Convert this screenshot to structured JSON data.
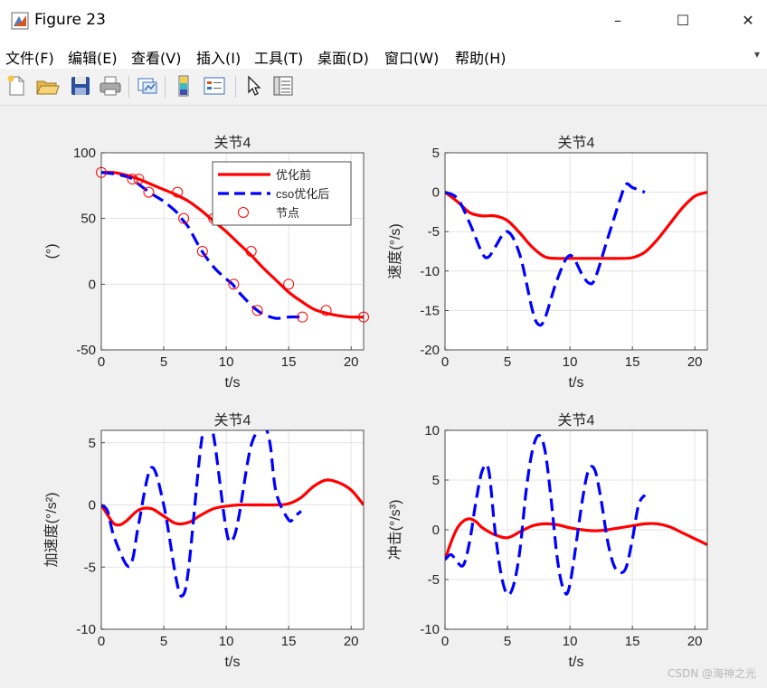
{
  "window": {
    "title": "Figure 23",
    "controls": {
      "minimize": "–",
      "maximize": "☐",
      "close": "✕"
    }
  },
  "menu": [
    "文件(F)",
    "编辑(E)",
    "查看(V)",
    "插入(I)",
    "工具(T)",
    "桌面(D)",
    "窗口(W)",
    "帮助(H)"
  ],
  "toolbar": [
    "new-figure-icon",
    "open-folder-icon",
    "save-icon",
    "print-icon",
    "link-plot-icon",
    "colorbar-icon",
    "legend-icon",
    "pointer-icon",
    "property-inspector-icon"
  ],
  "colors": {
    "before": "#ff0000",
    "after": "#0000ff",
    "nodes": "#ff0000"
  },
  "watermark": "CSDN @海神之光",
  "chart_data": [
    {
      "type": "line",
      "title": "关节4",
      "xlabel": "t/s",
      "ylabel": "(°)",
      "xlim": [
        0,
        21
      ],
      "ylim": [
        -50,
        100
      ],
      "xticks": [
        0,
        5,
        10,
        15,
        20
      ],
      "yticks": [
        -50,
        0,
        50,
        100
      ],
      "grid": true,
      "legend": {
        "position": "top-right",
        "entries": [
          "优化前",
          "cso优化后",
          "节点"
        ]
      },
      "series": [
        {
          "name": "优化前",
          "style": "solid",
          "color": "#ff0000",
          "x": [
            0,
            1,
            2,
            3,
            4,
            5,
            6,
            7,
            8,
            9,
            10,
            11,
            12,
            13,
            14,
            15,
            16,
            17,
            18,
            19,
            20,
            21
          ],
          "y": [
            85,
            85,
            83,
            80,
            76,
            72,
            68,
            63,
            56,
            48,
            40,
            31,
            22,
            12,
            3,
            -6,
            -13,
            -19,
            -22,
            -24,
            -25,
            -25
          ]
        },
        {
          "name": "cso优化后",
          "style": "dashed",
          "color": "#0000ff",
          "x": [
            0,
            1,
            2,
            2.5,
            3,
            4,
            5,
            6,
            6.5,
            7,
            8,
            9,
            10,
            10.5,
            11,
            12,
            12.5,
            13,
            14,
            15,
            16
          ],
          "y": [
            85,
            84,
            82,
            80,
            76,
            69,
            63,
            55,
            49,
            43,
            26,
            13,
            4,
            0,
            -6,
            -16,
            -20,
            -23,
            -26,
            -25,
            -25
          ]
        },
        {
          "name": "节点",
          "style": "markers",
          "color": "#ff0000",
          "x": [
            0,
            2.5,
            3,
            3.8,
            6.1,
            6.6,
            8.1,
            9,
            10.6,
            12,
            12.5,
            15,
            16.1,
            18,
            21
          ],
          "y": [
            85,
            80,
            80,
            70,
            70,
            50,
            25,
            50,
            0,
            25,
            -20,
            0,
            -25,
            -20,
            -25
          ]
        }
      ]
    },
    {
      "type": "line",
      "title": "关节4",
      "xlabel": "t/s",
      "ylabel": "速度(°/s)",
      "xlim": [
        0,
        21
      ],
      "ylim": [
        -20,
        5
      ],
      "xticks": [
        0,
        5,
        10,
        15,
        20
      ],
      "yticks": [
        -20,
        -15,
        -10,
        -5,
        0,
        5
      ],
      "grid": true,
      "series": [
        {
          "name": "优化前",
          "style": "solid",
          "color": "#ff0000",
          "x": [
            0,
            1,
            2,
            3,
            4,
            5,
            6,
            7,
            8,
            9,
            10,
            11,
            12,
            13,
            14,
            15,
            16,
            17,
            18,
            19,
            20,
            21
          ],
          "y": [
            0,
            -1.2,
            -2.6,
            -3,
            -3,
            -3.6,
            -5.2,
            -7,
            -8.2,
            -8.4,
            -8.4,
            -8.4,
            -8.4,
            -8.4,
            -8.4,
            -8.3,
            -7.6,
            -6,
            -4,
            -2,
            -0.5,
            0
          ]
        },
        {
          "name": "cso优化后",
          "style": "dashed",
          "color": "#0000ff",
          "x": [
            0,
            1,
            2,
            3,
            3.5,
            4,
            5,
            6,
            7,
            7.5,
            8,
            9,
            10,
            11,
            11.5,
            12,
            13,
            14,
            14.5,
            15,
            16
          ],
          "y": [
            0,
            -0.8,
            -4,
            -7.8,
            -8.2,
            -7,
            -5,
            -8,
            -15,
            -16.8,
            -16,
            -11,
            -8,
            -10.5,
            -11.5,
            -11,
            -6,
            -1,
            1,
            0.6,
            0
          ]
        }
      ]
    },
    {
      "type": "line",
      "title": "关节4",
      "xlabel": "t/s",
      "ylabel": "加速度(°/s²)",
      "xlim": [
        0,
        21
      ],
      "ylim": [
        -10,
        6
      ],
      "xticks": [
        0,
        5,
        10,
        15,
        20
      ],
      "yticks": [
        -10,
        -5,
        0,
        5
      ],
      "grid": true,
      "series": [
        {
          "name": "优化前",
          "style": "solid",
          "color": "#ff0000",
          "x": [
            0,
            0.5,
            1,
            1.5,
            2,
            3,
            4,
            5,
            6,
            7,
            8,
            9,
            10,
            11,
            12,
            13,
            14,
            15,
            16,
            17,
            18,
            19,
            20,
            21
          ],
          "y": [
            0,
            -0.8,
            -1.5,
            -1.6,
            -1.3,
            -0.4,
            -0.3,
            -0.9,
            -1.5,
            -1.4,
            -0.8,
            -0.3,
            -0.1,
            0,
            0,
            0,
            0,
            0.1,
            0.6,
            1.5,
            2,
            1.8,
            1.2,
            0
          ]
        },
        {
          "name": "cso优化后",
          "style": "dashed",
          "color": "#0000ff",
          "x": [
            0,
            0.5,
            1,
            2,
            2.5,
            3,
            4,
            5,
            6,
            6.5,
            7,
            8,
            8.5,
            9,
            10,
            10.5,
            11,
            12,
            13,
            13.5,
            14,
            15,
            15.5,
            16
          ],
          "y": [
            0,
            -0.5,
            -2.5,
            -4.8,
            -4.4,
            -1.5,
            3,
            0,
            -6,
            -7.3,
            -5,
            5,
            6.2,
            5.5,
            -2,
            -2.8,
            -1,
            4.8,
            6.2,
            5,
            1,
            -1.2,
            -0.9,
            -0.5
          ]
        }
      ]
    },
    {
      "type": "line",
      "title": "关节4",
      "xlabel": "t/s",
      "ylabel": "冲击(°/s³)",
      "xlim": [
        0,
        21
      ],
      "ylim": [
        -10,
        10
      ],
      "xticks": [
        0,
        5,
        10,
        15,
        20
      ],
      "yticks": [
        -10,
        -5,
        0,
        5,
        10
      ],
      "grid": true,
      "series": [
        {
          "name": "优化前",
          "style": "solid",
          "color": "#ff0000",
          "x": [
            0,
            0.5,
            1,
            1.5,
            2,
            2.5,
            3,
            4,
            5,
            6,
            7,
            8,
            9,
            10,
            11,
            12,
            13,
            14,
            15,
            16,
            17,
            18,
            19,
            20,
            21
          ],
          "y": [
            -3,
            -1.2,
            0.2,
            0.9,
            1.1,
            0.8,
            0.2,
            -0.5,
            -0.8,
            -0.2,
            0.4,
            0.6,
            0.5,
            0.2,
            0,
            -0.1,
            0,
            0.2,
            0.4,
            0.6,
            0.6,
            0.3,
            -0.3,
            -0.9,
            -1.5
          ]
        },
        {
          "name": "cso优化后",
          "style": "dashed",
          "color": "#0000ff",
          "x": [
            0,
            0.5,
            1,
            1.5,
            2,
            2.5,
            3,
            3.5,
            4,
            4.5,
            5,
            5.5,
            6,
            6.5,
            7,
            7.5,
            8,
            8.5,
            9,
            9.5,
            10,
            11,
            11.5,
            12,
            12.5,
            13,
            13.5,
            14,
            14.5,
            15,
            15.5,
            16
          ],
          "y": [
            -3,
            -2.5,
            -3.3,
            -3.5,
            -1,
            3,
            6,
            6,
            0,
            -4.5,
            -6.5,
            -5.5,
            -2,
            4,
            8,
            9.5,
            8,
            3,
            -3,
            -6,
            -5.5,
            3,
            6,
            6,
            3,
            -1,
            -3.5,
            -4.3,
            -3.8,
            -1,
            2.5,
            3.5
          ]
        }
      ]
    }
  ]
}
